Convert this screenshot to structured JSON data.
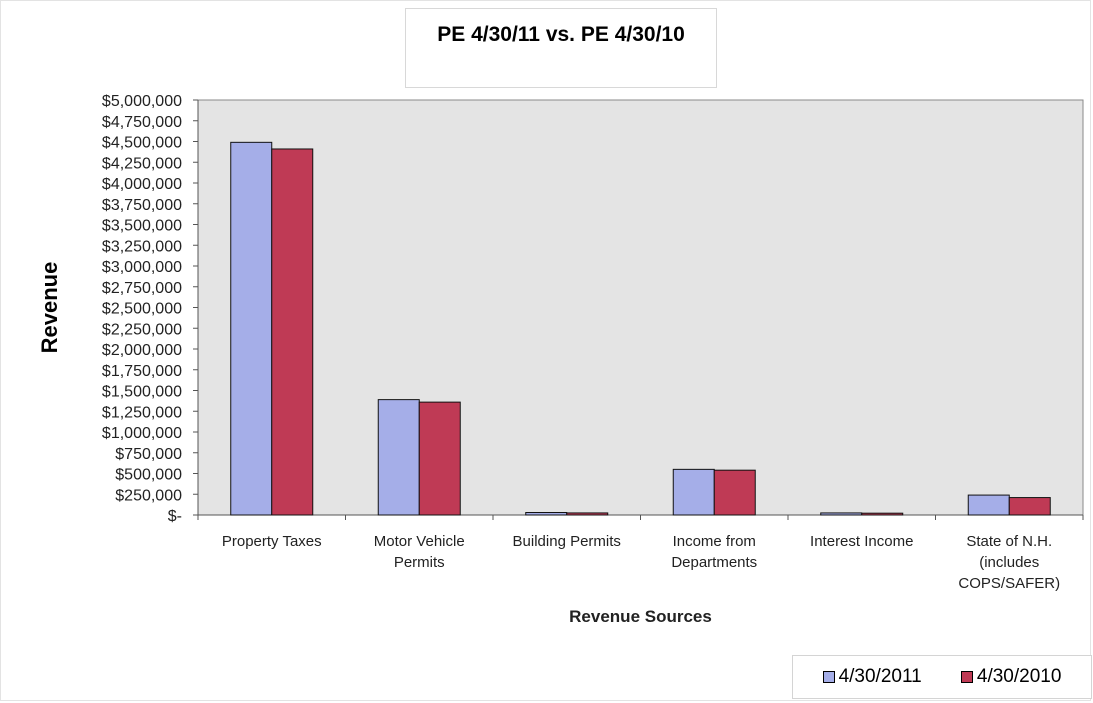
{
  "chart_data": {
    "type": "bar",
    "title": "PE  4/30/11 vs. PE 4/30/10",
    "xlabel": "Revenue Sources",
    "ylabel": "Revenue",
    "ylim": [
      0,
      5000000
    ],
    "y_ticks": [
      "$-",
      "$250,000",
      "$500,000",
      "$750,000",
      "$1,000,000",
      "$1,250,000",
      "$1,500,000",
      "$1,750,000",
      "$2,000,000",
      "$2,250,000",
      "$2,500,000",
      "$2,750,000",
      "$3,000,000",
      "$3,250,000",
      "$3,500,000",
      "$3,750,000",
      "$4,000,000",
      "$4,250,000",
      "$4,500,000",
      "$4,750,000",
      "$5,000,000"
    ],
    "categories": [
      [
        "Property Taxes"
      ],
      [
        "Motor Vehicle",
        "Permits"
      ],
      [
        "Building Permits"
      ],
      [
        "Income from",
        "Departments"
      ],
      [
        "Interest Income"
      ],
      [
        "State of N.H.",
        "(includes",
        "COPS/SAFER)"
      ]
    ],
    "series": [
      {
        "name": "4/30/2011",
        "color": "#a5aee8",
        "values": [
          4490000,
          1390000,
          30000,
          550000,
          25000,
          240000
        ]
      },
      {
        "name": "4/30/2010",
        "color": "#bf3a55",
        "values": [
          4410000,
          1360000,
          25000,
          540000,
          22000,
          210000
        ]
      }
    ],
    "grid": false,
    "plot_background": "#e4e4e4",
    "legend_position": "bottom-right"
  }
}
